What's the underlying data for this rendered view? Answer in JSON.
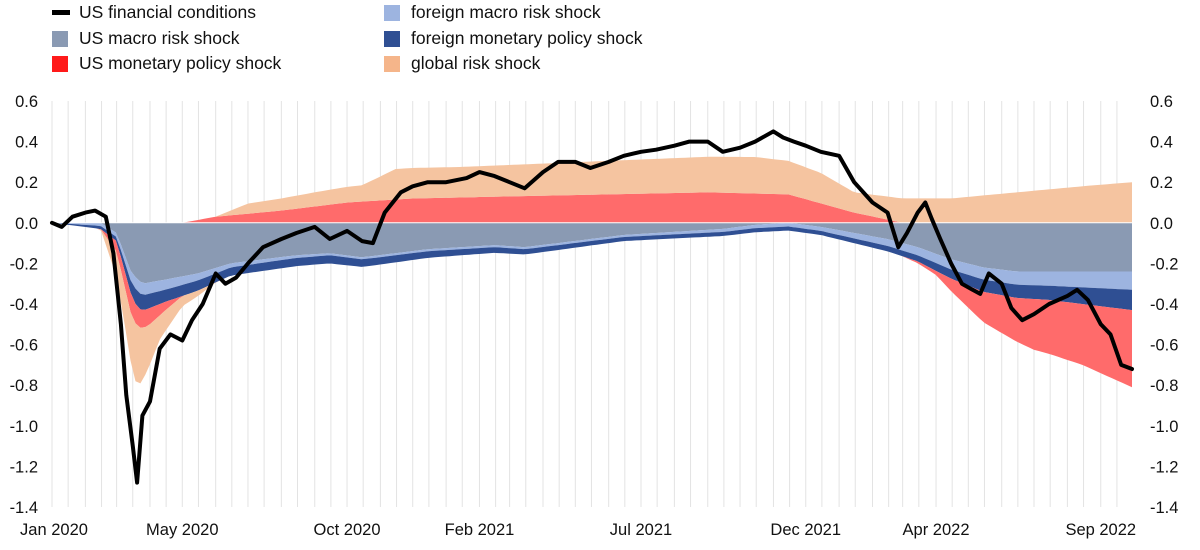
{
  "chart_data": {
    "type": "area",
    "stacked": true,
    "line_series": "US financial conditions",
    "legend_position": "top-left",
    "grid": {
      "vertical": true,
      "horizontal": false
    },
    "ylim": [
      -1.4,
      0.6
    ],
    "y_ticks": [
      {
        "value": 0.6,
        "label": "0.6"
      },
      {
        "value": 0.4,
        "label": "0.4"
      },
      {
        "value": 0.2,
        "label": "0.2"
      },
      {
        "value": 0.0,
        "label": "0.0"
      },
      {
        "value": -0.2,
        "label": "-0.2"
      },
      {
        "value": -0.4,
        "label": "-0.4"
      },
      {
        "value": -0.6,
        "label": "-0.6"
      },
      {
        "value": -0.8,
        "label": "-0.8"
      },
      {
        "value": -1.0,
        "label": "-1.0"
      },
      {
        "value": -1.2,
        "label": "-1.2"
      },
      {
        "value": -1.4,
        "label": "-1.4"
      }
    ],
    "x_range": [
      "2020-01-01",
      "2022-09-30"
    ],
    "x_ticks": [
      {
        "date": "2020-01-01",
        "label": "Jan 2020"
      },
      {
        "date": "2020-05-01",
        "label": "May 2020"
      },
      {
        "date": "2020-10-01",
        "label": "Oct 2020"
      },
      {
        "date": "2021-02-01",
        "label": "Feb 2021"
      },
      {
        "date": "2021-07-01",
        "label": "Jul 2021"
      },
      {
        "date": "2021-12-01",
        "label": "Dec 2021"
      },
      {
        "date": "2022-04-01",
        "label": "Apr 2022"
      },
      {
        "date": "2022-09-01",
        "label": "Sep 2022"
      }
    ],
    "series": [
      {
        "name": "US financial conditions",
        "kind": "line",
        "color": "#000000",
        "points": [
          [
            "2020-01-01",
            0.0
          ],
          [
            "2020-01-10",
            -0.02
          ],
          [
            "2020-01-20",
            0.03
          ],
          [
            "2020-02-01",
            0.05
          ],
          [
            "2020-02-10",
            0.06
          ],
          [
            "2020-02-20",
            0.03
          ],
          [
            "2020-02-27",
            -0.15
          ],
          [
            "2020-03-05",
            -0.5
          ],
          [
            "2020-03-10",
            -0.85
          ],
          [
            "2020-03-16",
            -1.1
          ],
          [
            "2020-03-20",
            -1.28
          ],
          [
            "2020-03-25",
            -0.95
          ],
          [
            "2020-04-01",
            -0.88
          ],
          [
            "2020-04-10",
            -0.62
          ],
          [
            "2020-04-20",
            -0.55
          ],
          [
            "2020-05-01",
            -0.58
          ],
          [
            "2020-05-10",
            -0.48
          ],
          [
            "2020-05-20",
            -0.4
          ],
          [
            "2020-06-01",
            -0.25
          ],
          [
            "2020-06-10",
            -0.3
          ],
          [
            "2020-06-20",
            -0.27
          ],
          [
            "2020-07-01",
            -0.2
          ],
          [
            "2020-07-15",
            -0.12
          ],
          [
            "2020-08-01",
            -0.08
          ],
          [
            "2020-08-15",
            -0.05
          ],
          [
            "2020-09-01",
            -0.02
          ],
          [
            "2020-09-15",
            -0.08
          ],
          [
            "2020-10-01",
            -0.04
          ],
          [
            "2020-10-15",
            -0.09
          ],
          [
            "2020-10-25",
            -0.1
          ],
          [
            "2020-11-05",
            0.05
          ],
          [
            "2020-11-20",
            0.15
          ],
          [
            "2020-12-01",
            0.18
          ],
          [
            "2020-12-15",
            0.2
          ],
          [
            "2021-01-01",
            0.2
          ],
          [
            "2021-01-20",
            0.22
          ],
          [
            "2021-02-01",
            0.25
          ],
          [
            "2021-02-15",
            0.23
          ],
          [
            "2021-03-01",
            0.2
          ],
          [
            "2021-03-15",
            0.17
          ],
          [
            "2021-04-01",
            0.25
          ],
          [
            "2021-04-15",
            0.3
          ],
          [
            "2021-05-01",
            0.3
          ],
          [
            "2021-05-15",
            0.27
          ],
          [
            "2021-06-01",
            0.3
          ],
          [
            "2021-06-15",
            0.33
          ],
          [
            "2021-07-01",
            0.35
          ],
          [
            "2021-07-15",
            0.36
          ],
          [
            "2021-08-01",
            0.38
          ],
          [
            "2021-08-15",
            0.4
          ],
          [
            "2021-09-01",
            0.4
          ],
          [
            "2021-09-15",
            0.35
          ],
          [
            "2021-10-01",
            0.37
          ],
          [
            "2021-10-15",
            0.4
          ],
          [
            "2021-11-01",
            0.45
          ],
          [
            "2021-11-10",
            0.42
          ],
          [
            "2021-11-20",
            0.4
          ],
          [
            "2021-12-01",
            0.38
          ],
          [
            "2021-12-15",
            0.35
          ],
          [
            "2022-01-01",
            0.33
          ],
          [
            "2022-01-15",
            0.2
          ],
          [
            "2022-02-01",
            0.1
          ],
          [
            "2022-02-15",
            0.05
          ],
          [
            "2022-02-25",
            -0.12
          ],
          [
            "2022-03-05",
            -0.05
          ],
          [
            "2022-03-15",
            0.05
          ],
          [
            "2022-03-22",
            0.1
          ],
          [
            "2022-03-28",
            0.02
          ],
          [
            "2022-04-05",
            -0.08
          ],
          [
            "2022-04-15",
            -0.2
          ],
          [
            "2022-04-25",
            -0.3
          ],
          [
            "2022-05-05",
            -0.33
          ],
          [
            "2022-05-12",
            -0.35
          ],
          [
            "2022-05-20",
            -0.25
          ],
          [
            "2022-06-01",
            -0.3
          ],
          [
            "2022-06-10",
            -0.42
          ],
          [
            "2022-06-20",
            -0.48
          ],
          [
            "2022-07-01",
            -0.45
          ],
          [
            "2022-07-15",
            -0.4
          ],
          [
            "2022-08-01",
            -0.36
          ],
          [
            "2022-08-10",
            -0.33
          ],
          [
            "2022-08-20",
            -0.38
          ],
          [
            "2022-09-01",
            -0.5
          ],
          [
            "2022-09-10",
            -0.55
          ],
          [
            "2022-09-20",
            -0.7
          ],
          [
            "2022-09-30",
            -0.72
          ]
        ]
      },
      {
        "name": "US macro risk shock",
        "kind": "area",
        "color": "#8a9ab3",
        "points": [
          [
            "2020-01-01",
            0.0
          ],
          [
            "2020-02-15",
            0.0
          ],
          [
            "2020-03-01",
            -0.05
          ],
          [
            "2020-03-15",
            -0.25
          ],
          [
            "2020-03-25",
            -0.3
          ],
          [
            "2020-04-15",
            -0.28
          ],
          [
            "2020-05-15",
            -0.25
          ],
          [
            "2020-06-15",
            -0.2
          ],
          [
            "2020-07-15",
            -0.18
          ],
          [
            "2020-08-15",
            -0.16
          ],
          [
            "2020-09-15",
            -0.15
          ],
          [
            "2020-10-15",
            -0.17
          ],
          [
            "2020-11-15",
            -0.15
          ],
          [
            "2020-12-15",
            -0.13
          ],
          [
            "2021-01-15",
            -0.12
          ],
          [
            "2021-02-15",
            -0.11
          ],
          [
            "2021-03-15",
            -0.12
          ],
          [
            "2021-04-15",
            -0.1
          ],
          [
            "2021-05-15",
            -0.08
          ],
          [
            "2021-06-15",
            -0.06
          ],
          [
            "2021-07-15",
            -0.05
          ],
          [
            "2021-08-15",
            -0.04
          ],
          [
            "2021-09-15",
            -0.03
          ],
          [
            "2021-10-15",
            -0.01
          ],
          [
            "2021-11-15",
            0.0
          ],
          [
            "2021-12-15",
            -0.02
          ],
          [
            "2022-01-15",
            -0.05
          ],
          [
            "2022-02-15",
            -0.08
          ],
          [
            "2022-03-15",
            -0.12
          ],
          [
            "2022-04-15",
            -0.18
          ],
          [
            "2022-05-15",
            -0.22
          ],
          [
            "2022-06-15",
            -0.24
          ],
          [
            "2022-07-15",
            -0.24
          ],
          [
            "2022-08-15",
            -0.24
          ],
          [
            "2022-09-30",
            -0.24
          ]
        ]
      },
      {
        "name": "foreign macro risk shock",
        "kind": "area",
        "color": "#9db4e0",
        "points": [
          [
            "2020-01-01",
            0.0
          ],
          [
            "2020-03-01",
            -0.02
          ],
          [
            "2020-03-20",
            -0.06
          ],
          [
            "2020-04-15",
            -0.05
          ],
          [
            "2020-06-15",
            -0.02
          ],
          [
            "2020-09-15",
            -0.01
          ],
          [
            "2021-01-15",
            -0.01
          ],
          [
            "2021-06-15",
            -0.01
          ],
          [
            "2021-12-15",
            -0.02
          ],
          [
            "2022-03-15",
            -0.04
          ],
          [
            "2022-05-15",
            -0.06
          ],
          [
            "2022-07-15",
            -0.07
          ],
          [
            "2022-09-30",
            -0.09
          ]
        ]
      },
      {
        "name": "foreign monetary policy shock",
        "kind": "area",
        "color": "#2f4f93",
        "points": [
          [
            "2020-01-01",
            0.0
          ],
          [
            "2020-03-01",
            -0.02
          ],
          [
            "2020-03-20",
            -0.08
          ],
          [
            "2020-04-15",
            -0.06
          ],
          [
            "2020-06-15",
            -0.04
          ],
          [
            "2020-09-15",
            -0.04
          ],
          [
            "2021-01-15",
            -0.03
          ],
          [
            "2021-06-15",
            -0.02
          ],
          [
            "2021-12-15",
            -0.02
          ],
          [
            "2022-03-15",
            -0.03
          ],
          [
            "2022-05-15",
            -0.06
          ],
          [
            "2022-07-15",
            -0.07
          ],
          [
            "2022-09-30",
            -0.1
          ]
        ]
      },
      {
        "name": "US monetary policy shock",
        "kind": "area",
        "color": "#ff6b6b",
        "points": [
          [
            "2020-01-01",
            0.0
          ],
          [
            "2020-02-15",
            0.0
          ],
          [
            "2020-03-15",
            -0.1
          ],
          [
            "2020-04-01",
            -0.08
          ],
          [
            "2020-05-01",
            0.0
          ],
          [
            "2020-06-01",
            0.03
          ],
          [
            "2020-08-01",
            0.06
          ],
          [
            "2020-10-01",
            0.1
          ],
          [
            "2020-12-01",
            0.12
          ],
          [
            "2021-03-01",
            0.13
          ],
          [
            "2021-06-01",
            0.14
          ],
          [
            "2021-09-01",
            0.15
          ],
          [
            "2021-11-15",
            0.14
          ],
          [
            "2022-01-15",
            0.05
          ],
          [
            "2022-03-01",
            0.0
          ],
          [
            "2022-04-01",
            -0.02
          ],
          [
            "2022-05-15",
            -0.15
          ],
          [
            "2022-07-01",
            -0.25
          ],
          [
            "2022-08-15",
            -0.3
          ],
          [
            "2022-09-30",
            -0.38
          ]
        ]
      },
      {
        "name": "global risk shock",
        "kind": "area",
        "color": "#f5c4a0",
        "points": [
          [
            "2020-01-01",
            0.0
          ],
          [
            "2020-02-15",
            0.0
          ],
          [
            "2020-03-10",
            -0.2
          ],
          [
            "2020-03-20",
            -0.3
          ],
          [
            "2020-04-10",
            -0.12
          ],
          [
            "2020-05-01",
            -0.05
          ],
          [
            "2020-06-01",
            0.0
          ],
          [
            "2020-07-01",
            0.05
          ],
          [
            "2020-09-01",
            0.07
          ],
          [
            "2020-10-15",
            0.08
          ],
          [
            "2020-11-15",
            0.15
          ],
          [
            "2021-01-15",
            0.15
          ],
          [
            "2021-04-15",
            0.16
          ],
          [
            "2021-07-15",
            0.17
          ],
          [
            "2021-10-15",
            0.18
          ],
          [
            "2021-12-15",
            0.15
          ],
          [
            "2022-01-15",
            0.1
          ],
          [
            "2022-03-01",
            0.12
          ],
          [
            "2022-04-15",
            0.12
          ],
          [
            "2022-06-15",
            0.15
          ],
          [
            "2022-08-15",
            0.18
          ],
          [
            "2022-09-30",
            0.2
          ]
        ]
      }
    ],
    "legend": [
      {
        "name": "US financial conditions",
        "color": "#000000",
        "marker": "line"
      },
      {
        "name": "foreign macro risk shock",
        "color": "#9db4e0",
        "marker": "box"
      },
      {
        "name": "US macro risk shock",
        "color": "#8a9ab3",
        "marker": "box"
      },
      {
        "name": "foreign monetary policy shock",
        "color": "#2f4f93",
        "marker": "box"
      },
      {
        "name": "US monetary policy shock",
        "color": "#ff1a1a",
        "marker": "box"
      },
      {
        "name": "global risk shock",
        "color": "#f5b58a",
        "marker": "box"
      }
    ]
  }
}
